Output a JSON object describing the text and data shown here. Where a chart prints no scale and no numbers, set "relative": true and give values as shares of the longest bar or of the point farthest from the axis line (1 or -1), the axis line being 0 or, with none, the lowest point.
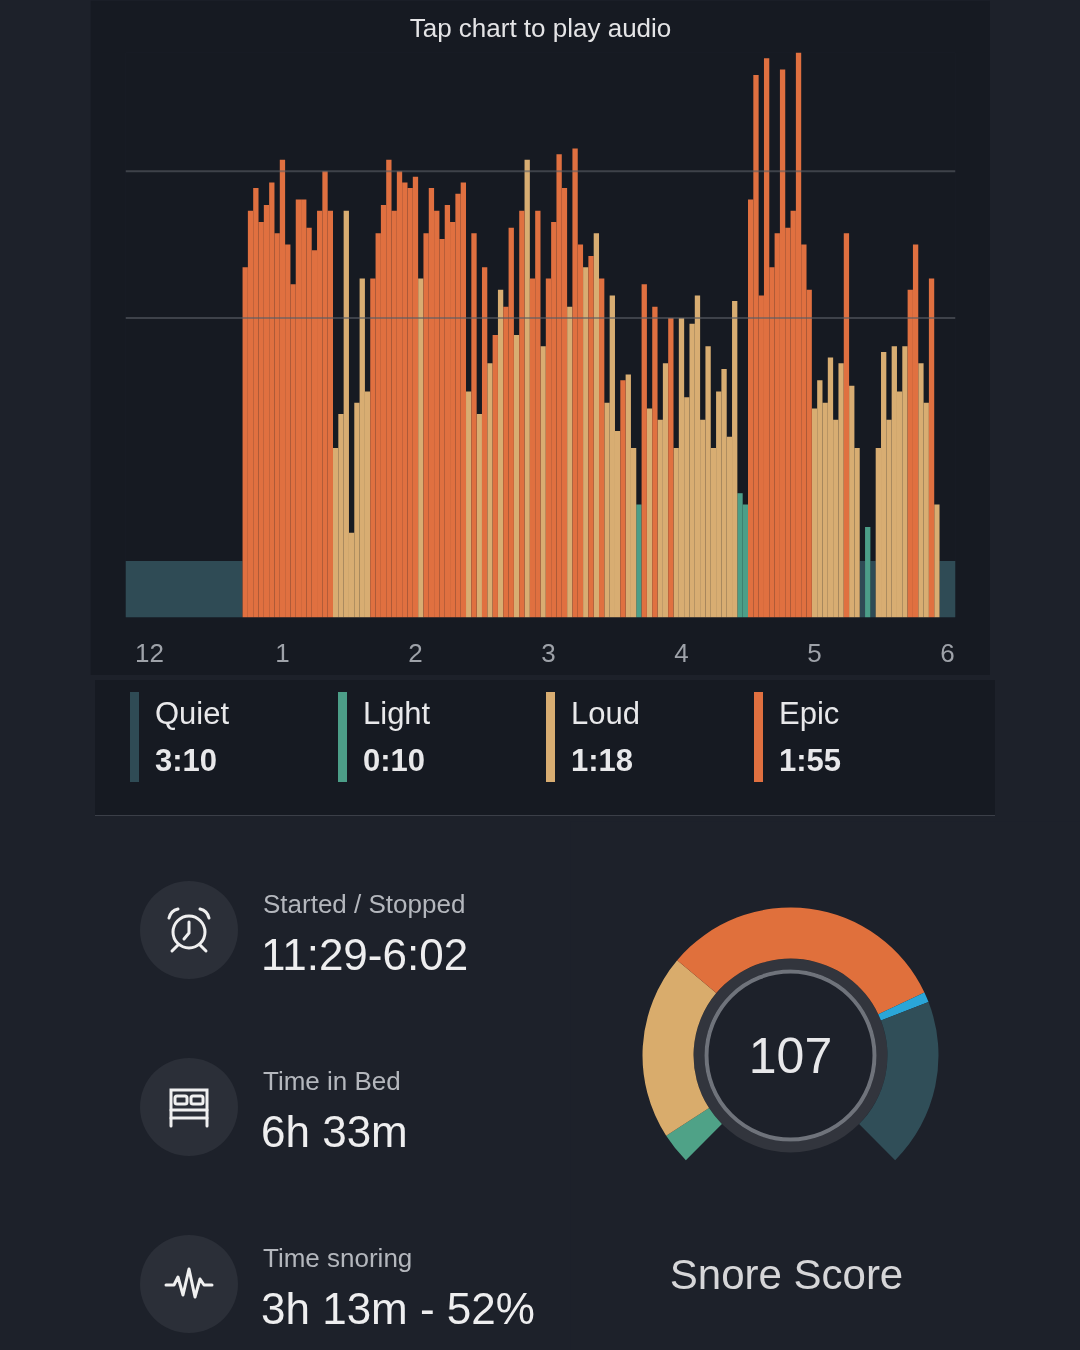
{
  "chart_data": [
    {
      "type": "bar",
      "title": "Tap chart to play audio",
      "relative": true,
      "categories": [
        null,
        null,
        null,
        null,
        "12",
        null,
        null,
        null,
        null,
        null,
        null,
        null,
        null,
        null,
        null,
        null,
        null,
        null,
        null,
        null,
        null,
        null,
        null,
        null,
        null,
        null,
        null,
        null,
        null,
        "1",
        null,
        null,
        null,
        null,
        null,
        null,
        null,
        null,
        null,
        null,
        null,
        null,
        null,
        null,
        null,
        null,
        null,
        null,
        null,
        null,
        null,
        null,
        null,
        null,
        "2",
        null,
        null,
        null,
        null,
        null,
        null,
        null,
        null,
        null,
        null,
        null,
        null,
        null,
        null,
        null,
        null,
        null,
        null,
        null,
        null,
        null,
        null,
        null,
        null,
        "3",
        null,
        null,
        null,
        null,
        null,
        null,
        null,
        null,
        null,
        null,
        null,
        null,
        null,
        null,
        null,
        null,
        null,
        null,
        null,
        null,
        null,
        null,
        null,
        null,
        "4",
        null,
        null,
        null,
        null,
        null,
        null,
        null,
        null,
        null,
        null,
        null,
        null,
        null,
        null,
        null,
        null,
        null,
        null,
        null,
        null,
        null,
        null,
        null,
        null,
        "5",
        null,
        null,
        null,
        null,
        null,
        null,
        null,
        null,
        null,
        null,
        null,
        null,
        null,
        null,
        null,
        null,
        null,
        null,
        null,
        null,
        null,
        null,
        null,
        null,
        "6",
        null
      ],
      "series": [
        {
          "name": "Quiet",
          "type": "area",
          "color": "#2f4b55",
          "values": [
            0.1,
            0.1,
            0.1,
            0.1,
            0.1,
            0.1,
            0.1,
            0.1,
            0.1,
            0.1,
            0.1,
            0.1,
            0.1,
            0.1,
            0.1,
            0.1,
            0.1,
            0.1,
            0.1,
            0.1,
            0.1,
            0.1,
            null,
            null,
            null,
            null,
            null,
            null,
            null,
            null,
            null,
            null,
            null,
            null,
            null,
            null,
            null,
            null,
            null,
            null,
            null,
            null,
            null,
            null,
            null,
            null,
            null,
            null,
            null,
            null,
            null,
            null,
            null,
            null,
            null,
            null,
            null,
            null,
            null,
            null,
            null,
            null,
            null,
            null,
            null,
            null,
            null,
            null,
            null,
            null,
            null,
            null,
            null,
            null,
            null,
            null,
            null,
            null,
            null,
            null,
            null,
            null,
            null,
            null,
            null,
            null,
            null,
            null,
            null,
            null,
            null,
            null,
            null,
            null,
            null,
            null,
            null,
            null,
            null,
            null,
            null,
            null,
            null,
            null,
            null,
            null,
            null,
            null,
            null,
            null,
            null,
            null,
            null,
            null,
            null,
            null,
            null,
            null,
            null,
            null,
            null,
            null,
            null,
            null,
            null,
            null,
            null,
            null,
            null,
            null,
            null,
            null,
            null,
            null,
            null,
            null,
            null,
            null,
            0.1,
            null,
            0.1,
            null,
            null,
            null,
            null,
            null,
            null,
            null,
            null,
            null,
            null,
            null,
            null,
            0.1,
            0.1,
            0.1
          ]
        },
        {
          "name": "Light",
          "color": "#4c9e88",
          "values": [
            null,
            null,
            null,
            null,
            null,
            null,
            null,
            null,
            null,
            null,
            null,
            null,
            null,
            null,
            null,
            null,
            null,
            null,
            null,
            null,
            null,
            null,
            null,
            null,
            null,
            null,
            null,
            null,
            null,
            null,
            null,
            null,
            null,
            null,
            null,
            null,
            null,
            null,
            null,
            null,
            null,
            null,
            null,
            null,
            null,
            null,
            null,
            null,
            null,
            null,
            null,
            null,
            null,
            null,
            null,
            null,
            null,
            null,
            null,
            null,
            null,
            null,
            null,
            null,
            null,
            null,
            null,
            null,
            null,
            null,
            null,
            null,
            null,
            null,
            null,
            null,
            null,
            null,
            null,
            null,
            null,
            null,
            null,
            null,
            null,
            null,
            null,
            null,
            null,
            null,
            null,
            null,
            null,
            null,
            null,
            null,
            0.2,
            null,
            null,
            null,
            null,
            null,
            null,
            null,
            null,
            null,
            null,
            null,
            null,
            null,
            null,
            null,
            null,
            null,
            null,
            0.22,
            0.2,
            null,
            null,
            null,
            null,
            null,
            null,
            null,
            null,
            null,
            null,
            null,
            null,
            null,
            null,
            null,
            null,
            null,
            null,
            null,
            null,
            null,
            null,
            0.16,
            null,
            null,
            null,
            null,
            null,
            null,
            null,
            null,
            null,
            null,
            null,
            null,
            null,
            null,
            null,
            null
          ]
        },
        {
          "name": "Loud",
          "color": "#d8ad72",
          "values": [
            null,
            null,
            null,
            null,
            null,
            null,
            null,
            null,
            null,
            null,
            null,
            null,
            null,
            null,
            null,
            null,
            null,
            null,
            null,
            null,
            null,
            null,
            null,
            null,
            null,
            null,
            null,
            null,
            null,
            null,
            null,
            null,
            null,
            null,
            null,
            null,
            null,
            null,
            null,
            0.3,
            0.36,
            0.72,
            0.15,
            0.38,
            0.6,
            0.4,
            null,
            null,
            null,
            null,
            null,
            null,
            null,
            null,
            null,
            0.6,
            null,
            null,
            null,
            null,
            null,
            null,
            null,
            null,
            0.4,
            null,
            0.36,
            null,
            0.45,
            null,
            0.58,
            null,
            null,
            0.5,
            null,
            0.81,
            null,
            null,
            0.48,
            null,
            null,
            null,
            null,
            0.55,
            null,
            null,
            0.62,
            null,
            0.68,
            null,
            0.38,
            0.57,
            0.33,
            null,
            0.43,
            0.3,
            null,
            null,
            0.37,
            null,
            0.35,
            0.45,
            null,
            0.3,
            0.53,
            0.39,
            0.52,
            0.57,
            0.35,
            0.48,
            0.3,
            0.4,
            0.44,
            0.32,
            0.56,
            null,
            null,
            null,
            null,
            null,
            null,
            null,
            null,
            null,
            null,
            null,
            null,
            null,
            null,
            0.37,
            0.42,
            0.38,
            0.46,
            0.35,
            0.45,
            null,
            0.41,
            0.3,
            null,
            null,
            null,
            0.3,
            0.47,
            0.35,
            0.48,
            0.4,
            0.48,
            null,
            null,
            0.45,
            0.38,
            null,
            0.2,
            null,
            null,
            null
          ]
        },
        {
          "name": "Epic",
          "color": "#e07040",
          "values": [
            null,
            null,
            null,
            null,
            null,
            null,
            null,
            null,
            null,
            null,
            null,
            null,
            null,
            null,
            null,
            null,
            null,
            null,
            null,
            null,
            null,
            null,
            0.62,
            0.72,
            0.76,
            0.7,
            0.73,
            0.77,
            0.68,
            0.81,
            0.66,
            0.59,
            0.74,
            0.74,
            0.69,
            0.65,
            0.72,
            0.79,
            0.72,
            null,
            null,
            null,
            null,
            null,
            null,
            null,
            0.6,
            0.68,
            0.73,
            0.81,
            0.72,
            0.79,
            0.77,
            0.76,
            0.78,
            null,
            0.68,
            0.76,
            0.72,
            0.67,
            0.73,
            0.7,
            0.75,
            0.77,
            null,
            0.68,
            null,
            0.62,
            null,
            0.5,
            null,
            0.55,
            0.69,
            null,
            0.72,
            null,
            0.6,
            0.72,
            null,
            0.6,
            0.7,
            0.82,
            0.76,
            null,
            0.83,
            0.66,
            null,
            0.64,
            null,
            0.6,
            null,
            null,
            null,
            0.42,
            null,
            null,
            null,
            0.59,
            null,
            0.55,
            null,
            null,
            0.53,
            null,
            null,
            null,
            null,
            null,
            null,
            null,
            null,
            null,
            null,
            null,
            null,
            null,
            null,
            0.74,
            0.96,
            0.57,
            0.99,
            0.62,
            0.68,
            0.97,
            0.69,
            0.72,
            1.0,
            0.66,
            0.58,
            null,
            null,
            null,
            null,
            null,
            null,
            0.68,
            null,
            null,
            null,
            null,
            null,
            null,
            null,
            null,
            null,
            null,
            null,
            0.58,
            0.66,
            null,
            null,
            0.6,
            null,
            null,
            null,
            null
          ]
        }
      ],
      "ref_lines": [
        {
          "axis": "y",
          "value": 0.79,
          "color": "#5a5e66"
        },
        {
          "axis": "y",
          "value": 0.53,
          "color": "#5a5e66"
        }
      ],
      "legend": "bottom",
      "annotations": [
        "3:10",
        "0:10",
        "1:18",
        "1:55"
      ]
    },
    {
      "type": "other",
      "annotations": [
        "Started / Stopped",
        "11:29-6:02",
        "Time in Bed",
        "6h 33m",
        "Time snoring",
        "3h 13m - 52%"
      ]
    },
    {
      "type": "donut",
      "title": "Snore Score",
      "categories": [
        null,
        null,
        null,
        null,
        null
      ],
      "values": [
        4.5,
        27,
        42.5,
        1.5,
        24.5
      ],
      "colors": [
        "#4fa287",
        "#d9ac6c",
        "#e0703c",
        "#2aa6d8",
        "#304e58"
      ],
      "annotations": [
        "107"
      ]
    }
  ]
}
